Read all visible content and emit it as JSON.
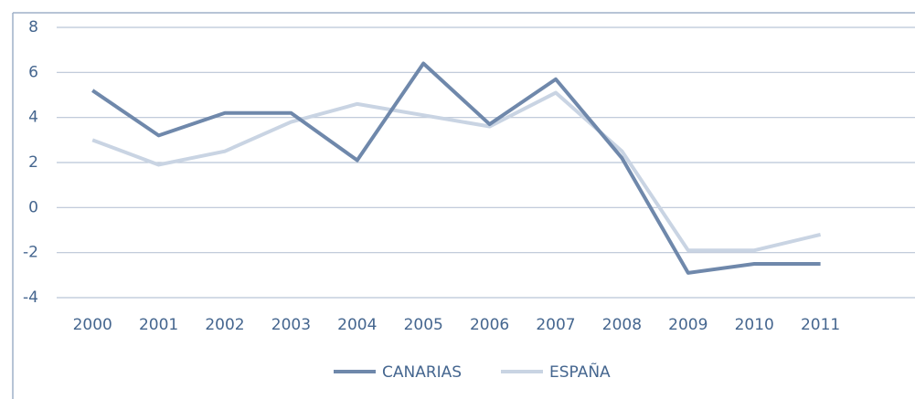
{
  "chart_data": {
    "type": "line",
    "categories": [
      "2000",
      "2001",
      "2002",
      "2003",
      "2004",
      "2005",
      "2006",
      "2007",
      "2008",
      "2009",
      "2010",
      "2011"
    ],
    "series": [
      {
        "name": "CANARIAS",
        "color": "#6f88ab",
        "values": [
          5.2,
          3.2,
          4.2,
          4.2,
          2.1,
          6.4,
          3.7,
          5.7,
          2.2,
          -2.9,
          -2.5,
          -2.5
        ]
      },
      {
        "name": "ESPAÑA",
        "color": "#c9d4e3",
        "values": [
          3.0,
          1.9,
          2.5,
          3.8,
          4.6,
          4.1,
          3.6,
          5.1,
          2.5,
          -1.9,
          -1.9,
          -1.2
        ]
      }
    ],
    "ylim": [
      -4,
      8
    ],
    "yticks": [
      -4,
      -2,
      0,
      2,
      4,
      6,
      8
    ],
    "grid": true,
    "legend": "bottom"
  }
}
